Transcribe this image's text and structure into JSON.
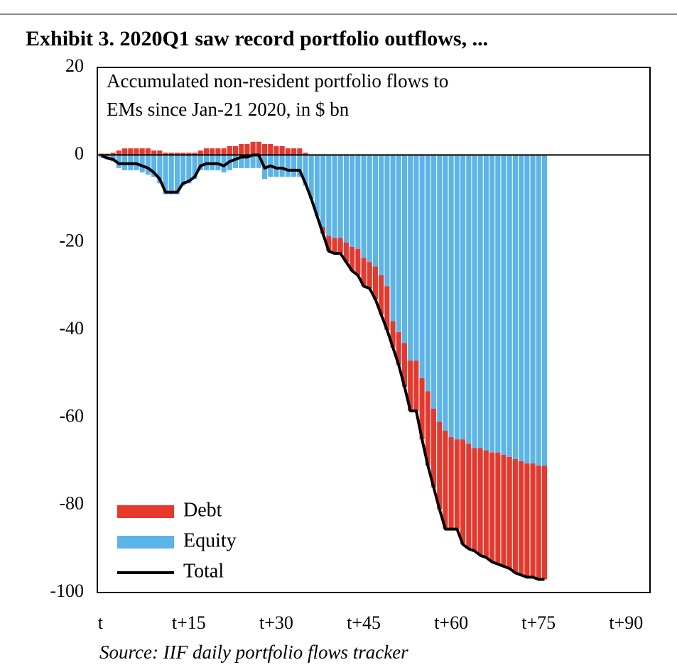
{
  "chart_data": {
    "type": "stacked_bar_line",
    "title": "Exhibit 3. 2020Q1 saw record portfolio outflows, ...",
    "subtitle": [
      "Accumulated non-resident portfolio flows to",
      "EMs since Jan-21 2020, in $ bn"
    ],
    "source": "Source: IIF daily portfolio flows tracker",
    "x": [
      0,
      1,
      2,
      3,
      4,
      5,
      6,
      7,
      8,
      9,
      10,
      11,
      12,
      13,
      14,
      15,
      16,
      17,
      18,
      19,
      20,
      21,
      22,
      23,
      24,
      25,
      26,
      27,
      28,
      29,
      30,
      31,
      32,
      33,
      34,
      35,
      36,
      37,
      38,
      39,
      40,
      41,
      42,
      43,
      44,
      45,
      46,
      47,
      48,
      49,
      50,
      51,
      52,
      53,
      54,
      55,
      56,
      57,
      58,
      59,
      60,
      61,
      62,
      63,
      64,
      65,
      66,
      67,
      68,
      69,
      70,
      71,
      72,
      73,
      74,
      75,
      76
    ],
    "series": [
      {
        "name": "Debt",
        "color": "#e8382c",
        "kind": "bar",
        "values": [
          0.3,
          0.3,
          0.5,
          1,
          1.5,
          1.5,
          1.5,
          1.5,
          1.5,
          1,
          1,
          0.5,
          0.5,
          0.5,
          0.5,
          0.5,
          0.5,
          1,
          1.5,
          1.5,
          1.5,
          1.5,
          2,
          2,
          2.5,
          2.5,
          3,
          3,
          2.5,
          2.5,
          2,
          2,
          1.5,
          1.5,
          1.5,
          0.5,
          0,
          0,
          -1.5,
          -3.5,
          -3.5,
          -3.5,
          -4.5,
          -5.5,
          -6,
          -6.5,
          -6,
          -7.5,
          -9,
          -10,
          -6,
          -7.5,
          -10,
          -11.5,
          -11.5,
          -14,
          -17,
          -18,
          -20,
          -22.5,
          -21,
          -20.5,
          -24,
          -24,
          -23.5,
          -24.5,
          -24.5,
          -25,
          -25.5,
          -25.5,
          -25.5,
          -26,
          -26,
          -26,
          -26,
          -26,
          -26
        ]
      },
      {
        "name": "Equity",
        "color": "#5bb4ea",
        "kind": "bar",
        "values": [
          -0.5,
          -1,
          -1.5,
          -3,
          -3.5,
          -3.5,
          -3.5,
          -4,
          -4.5,
          -5,
          -6.5,
          -9,
          -9,
          -9,
          -7,
          -6.5,
          -5.5,
          -3.5,
          -3.5,
          -3.5,
          -3.5,
          -4,
          -3.5,
          -3,
          -3,
          -3,
          -3,
          -3,
          -5.5,
          -5,
          -5,
          -5,
          -5,
          -5,
          -5,
          -7,
          -10,
          -14,
          -16.5,
          -18.5,
          -19,
          -19,
          -20,
          -21,
          -21.5,
          -23.5,
          -24.5,
          -25.5,
          -27.5,
          -30,
          -38,
          -40.5,
          -43,
          -47,
          -47,
          -51,
          -54,
          -58,
          -61,
          -63,
          -64.5,
          -65,
          -65,
          -66,
          -67,
          -67,
          -67.5,
          -68,
          -68,
          -68.5,
          -69,
          -69.5,
          -70,
          -70.5,
          -70.5,
          -71,
          -71
        ]
      },
      {
        "name": "Total",
        "color": "#000000",
        "kind": "line",
        "values": [
          -0.2,
          -0.7,
          -1,
          -2,
          -2,
          -2,
          -2,
          -2.5,
          -3,
          -4,
          -5.5,
          -8.5,
          -8.5,
          -8.5,
          -6.5,
          -6,
          -5,
          -2.5,
          -2,
          -2,
          -2,
          -2.5,
          -1.5,
          -1,
          -0.5,
          -0.5,
          0,
          0,
          -3,
          -2.5,
          -3,
          -3,
          -3.5,
          -3.5,
          -3.5,
          -6.5,
          -10,
          -14,
          -18,
          -22,
          -22.5,
          -22.5,
          -24.5,
          -26.5,
          -27.5,
          -30,
          -30.5,
          -33,
          -36.5,
          -40,
          -44,
          -48,
          -53,
          -58.5,
          -58.5,
          -65,
          -71,
          -76,
          -81,
          -85.5,
          -85.5,
          -85.5,
          -89,
          -90,
          -90.5,
          -91.5,
          -92,
          -93,
          -93.5,
          -94,
          -94.5,
          -95.5,
          -96,
          -96.5,
          -96.5,
          -97,
          -97
        ]
      }
    ],
    "xlim": [
      -0.7,
      94.1
    ],
    "ylim": [
      -100,
      20
    ],
    "xticks": [
      {
        "value": 0,
        "label": "t"
      },
      {
        "value": 15,
        "label": "t+15"
      },
      {
        "value": 30,
        "label": "t+30"
      },
      {
        "value": 45,
        "label": "t+45"
      },
      {
        "value": 60,
        "label": "t+60"
      },
      {
        "value": 75,
        "label": "t+75"
      },
      {
        "value": 90,
        "label": "t+90"
      }
    ],
    "yticks": [
      20,
      0,
      -20,
      -40,
      -60,
      -80,
      -100
    ],
    "legend": "lower left"
  }
}
